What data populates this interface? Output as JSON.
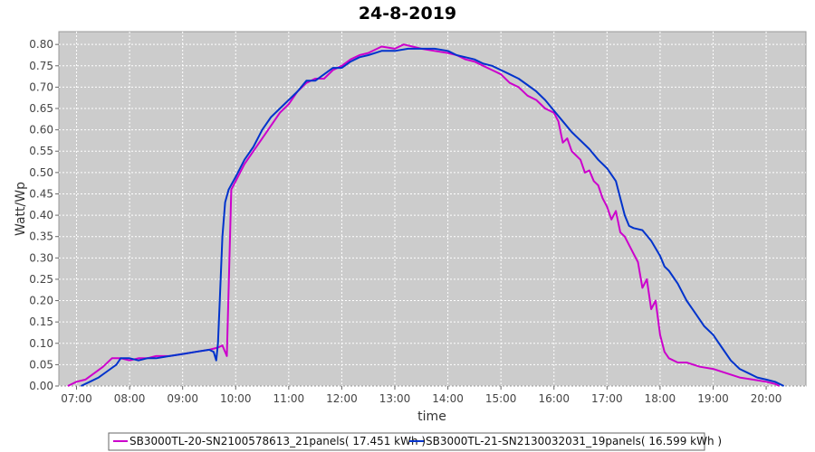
{
  "chart_data": {
    "type": "line",
    "title": "24-8-2019",
    "xlabel": "time",
    "ylabel": "Watt/Wp",
    "xlim": [
      "06:40",
      "20:45"
    ],
    "ylim": [
      0,
      0.83
    ],
    "x_ticks": [
      "07:00",
      "08:00",
      "09:00",
      "10:00",
      "11:00",
      "12:00",
      "13:00",
      "14:00",
      "15:00",
      "16:00",
      "17:00",
      "18:00",
      "19:00",
      "20:00"
    ],
    "y_ticks": [
      "0.00",
      "0.05",
      "0.10",
      "0.15",
      "0.20",
      "0.25",
      "0.30",
      "0.35",
      "0.40",
      "0.45",
      "0.50",
      "0.55",
      "0.60",
      "0.65",
      "0.70",
      "0.75",
      "0.80"
    ],
    "grid": true,
    "legend_position": "bottom",
    "colors": {
      "plot_background": "#cccccc",
      "grid": "#ffffff"
    },
    "series": [
      {
        "name": "SB3000TL-20-SN2100578613_21panels( 17.451 kWh )",
        "color": "#cc00cc",
        "points": [
          [
            "06:50",
            0.0
          ],
          [
            "07:00",
            0.01
          ],
          [
            "07:10",
            0.015
          ],
          [
            "07:20",
            0.03
          ],
          [
            "07:30",
            0.045
          ],
          [
            "07:40",
            0.065
          ],
          [
            "07:50",
            0.065
          ],
          [
            "08:00",
            0.06
          ],
          [
            "08:10",
            0.065
          ],
          [
            "08:20",
            0.065
          ],
          [
            "08:30",
            0.07
          ],
          [
            "08:45",
            0.07
          ],
          [
            "09:00",
            0.075
          ],
          [
            "09:15",
            0.08
          ],
          [
            "09:30",
            0.085
          ],
          [
            "09:40",
            0.09
          ],
          [
            "09:45",
            0.095
          ],
          [
            "09:50",
            0.07
          ],
          [
            "09:53",
            0.3
          ],
          [
            "09:55",
            0.46
          ],
          [
            "10:00",
            0.48
          ],
          [
            "10:10",
            0.52
          ],
          [
            "10:20",
            0.55
          ],
          [
            "10:30",
            0.58
          ],
          [
            "10:40",
            0.61
          ],
          [
            "10:50",
            0.64
          ],
          [
            "11:00",
            0.66
          ],
          [
            "11:10",
            0.69
          ],
          [
            "11:20",
            0.71
          ],
          [
            "11:30",
            0.72
          ],
          [
            "11:40",
            0.72
          ],
          [
            "11:50",
            0.74
          ],
          [
            "12:00",
            0.75
          ],
          [
            "12:10",
            0.765
          ],
          [
            "12:20",
            0.775
          ],
          [
            "12:30",
            0.78
          ],
          [
            "12:45",
            0.795
          ],
          [
            "13:00",
            0.79
          ],
          [
            "13:10",
            0.8
          ],
          [
            "13:20",
            0.795
          ],
          [
            "13:30",
            0.79
          ],
          [
            "13:45",
            0.785
          ],
          [
            "14:00",
            0.78
          ],
          [
            "14:10",
            0.775
          ],
          [
            "14:20",
            0.765
          ],
          [
            "14:30",
            0.76
          ],
          [
            "14:40",
            0.75
          ],
          [
            "14:50",
            0.74
          ],
          [
            "15:00",
            0.73
          ],
          [
            "15:10",
            0.71
          ],
          [
            "15:20",
            0.7
          ],
          [
            "15:30",
            0.68
          ],
          [
            "15:40",
            0.67
          ],
          [
            "15:50",
            0.65
          ],
          [
            "16:00",
            0.64
          ],
          [
            "16:05",
            0.62
          ],
          [
            "16:10",
            0.57
          ],
          [
            "16:15",
            0.58
          ],
          [
            "16:20",
            0.55
          ],
          [
            "16:30",
            0.53
          ],
          [
            "16:35",
            0.5
          ],
          [
            "16:40",
            0.505
          ],
          [
            "16:45",
            0.48
          ],
          [
            "16:50",
            0.47
          ],
          [
            "16:55",
            0.44
          ],
          [
            "17:00",
            0.42
          ],
          [
            "17:05",
            0.39
          ],
          [
            "17:10",
            0.41
          ],
          [
            "17:15",
            0.36
          ],
          [
            "17:20",
            0.35
          ],
          [
            "17:30",
            0.31
          ],
          [
            "17:35",
            0.29
          ],
          [
            "17:40",
            0.23
          ],
          [
            "17:45",
            0.25
          ],
          [
            "17:50",
            0.18
          ],
          [
            "17:55",
            0.2
          ],
          [
            "18:00",
            0.12
          ],
          [
            "18:05",
            0.08
          ],
          [
            "18:10",
            0.065
          ],
          [
            "18:20",
            0.055
          ],
          [
            "18:30",
            0.055
          ],
          [
            "18:45",
            0.045
          ],
          [
            "19:00",
            0.04
          ],
          [
            "19:15",
            0.03
          ],
          [
            "19:30",
            0.02
          ],
          [
            "19:45",
            0.015
          ],
          [
            "20:00",
            0.01
          ],
          [
            "20:10",
            0.005
          ],
          [
            "20:15",
            0.0
          ]
        ]
      },
      {
        "name": "SB3000TL-21-SN2130032031_19panels( 16.599 kWh )",
        "color": "#0033cc",
        "points": [
          [
            "07:05",
            0.0
          ],
          [
            "07:15",
            0.01
          ],
          [
            "07:25",
            0.02
          ],
          [
            "07:35",
            0.035
          ],
          [
            "07:45",
            0.05
          ],
          [
            "07:50",
            0.065
          ],
          [
            "08:00",
            0.065
          ],
          [
            "08:10",
            0.06
          ],
          [
            "08:20",
            0.065
          ],
          [
            "08:30",
            0.065
          ],
          [
            "08:45",
            0.07
          ],
          [
            "09:00",
            0.075
          ],
          [
            "09:15",
            0.08
          ],
          [
            "09:30",
            0.085
          ],
          [
            "09:35",
            0.08
          ],
          [
            "09:38",
            0.06
          ],
          [
            "09:40",
            0.1
          ],
          [
            "09:42",
            0.2
          ],
          [
            "09:45",
            0.35
          ],
          [
            "09:48",
            0.43
          ],
          [
            "09:52",
            0.46
          ],
          [
            "10:00",
            0.49
          ],
          [
            "10:10",
            0.53
          ],
          [
            "10:20",
            0.56
          ],
          [
            "10:30",
            0.6
          ],
          [
            "10:40",
            0.63
          ],
          [
            "10:50",
            0.65
          ],
          [
            "11:00",
            0.67
          ],
          [
            "11:10",
            0.69
          ],
          [
            "11:20",
            0.715
          ],
          [
            "11:30",
            0.715
          ],
          [
            "11:40",
            0.73
          ],
          [
            "11:50",
            0.745
          ],
          [
            "12:00",
            0.745
          ],
          [
            "12:10",
            0.76
          ],
          [
            "12:20",
            0.77
          ],
          [
            "12:30",
            0.775
          ],
          [
            "12:45",
            0.785
          ],
          [
            "13:00",
            0.785
          ],
          [
            "13:15",
            0.79
          ],
          [
            "13:30",
            0.79
          ],
          [
            "13:45",
            0.79
          ],
          [
            "14:00",
            0.785
          ],
          [
            "14:10",
            0.775
          ],
          [
            "14:20",
            0.77
          ],
          [
            "14:30",
            0.765
          ],
          [
            "14:40",
            0.755
          ],
          [
            "14:50",
            0.75
          ],
          [
            "15:00",
            0.74
          ],
          [
            "15:10",
            0.73
          ],
          [
            "15:20",
            0.72
          ],
          [
            "15:30",
            0.705
          ],
          [
            "15:40",
            0.69
          ],
          [
            "15:50",
            0.67
          ],
          [
            "16:00",
            0.645
          ],
          [
            "16:10",
            0.62
          ],
          [
            "16:20",
            0.595
          ],
          [
            "16:30",
            0.575
          ],
          [
            "16:40",
            0.555
          ],
          [
            "16:50",
            0.53
          ],
          [
            "17:00",
            0.51
          ],
          [
            "17:10",
            0.48
          ],
          [
            "17:15",
            0.44
          ],
          [
            "17:20",
            0.4
          ],
          [
            "17:25",
            0.375
          ],
          [
            "17:30",
            0.37
          ],
          [
            "17:40",
            0.365
          ],
          [
            "17:50",
            0.34
          ],
          [
            "18:00",
            0.305
          ],
          [
            "18:05",
            0.28
          ],
          [
            "18:10",
            0.27
          ],
          [
            "18:20",
            0.24
          ],
          [
            "18:30",
            0.2
          ],
          [
            "18:40",
            0.17
          ],
          [
            "18:50",
            0.14
          ],
          [
            "19:00",
            0.12
          ],
          [
            "19:10",
            0.09
          ],
          [
            "19:20",
            0.06
          ],
          [
            "19:30",
            0.04
          ],
          [
            "19:40",
            0.03
          ],
          [
            "19:50",
            0.02
          ],
          [
            "20:00",
            0.015
          ],
          [
            "20:10",
            0.01
          ],
          [
            "20:20",
            0.0
          ]
        ]
      }
    ]
  }
}
